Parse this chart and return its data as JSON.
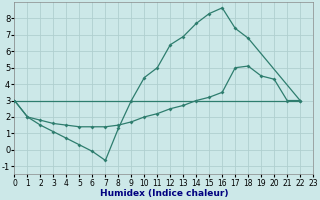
{
  "xlabel": "Humidex (Indice chaleur)",
  "bg_color": "#cce8e8",
  "grid_color": "#b0cfcf",
  "line_color": "#2e7d6e",
  "xlim": [
    0,
    23
  ],
  "ylim": [
    -1.5,
    9.0
  ],
  "yticks": [
    -1,
    0,
    1,
    2,
    3,
    4,
    5,
    6,
    7,
    8
  ],
  "xticks": [
    0,
    1,
    2,
    3,
    4,
    5,
    6,
    7,
    8,
    9,
    10,
    11,
    12,
    13,
    14,
    15,
    16,
    17,
    18,
    19,
    20,
    21,
    22,
    23
  ],
  "line1_x": [
    0,
    1,
    2,
    3,
    4,
    5,
    6,
    7,
    8,
    9,
    10,
    11,
    12,
    13,
    14,
    15,
    16,
    17,
    18,
    22
  ],
  "line1_y": [
    3.0,
    2.0,
    1.5,
    1.1,
    0.7,
    0.3,
    -0.1,
    -0.65,
    1.3,
    3.0,
    4.4,
    5.0,
    6.4,
    6.9,
    7.7,
    8.3,
    8.65,
    7.4,
    6.8,
    3.0
  ],
  "line2_x": [
    0,
    22
  ],
  "line2_y": [
    3.0,
    3.0
  ],
  "line3_x": [
    0,
    1,
    2,
    3,
    4,
    5,
    6,
    7,
    8,
    9,
    10,
    11,
    12,
    13,
    14,
    15,
    16,
    17,
    18,
    19,
    20,
    21,
    22
  ],
  "line3_y": [
    3.0,
    2.0,
    1.8,
    1.6,
    1.5,
    1.4,
    1.4,
    1.4,
    1.5,
    1.7,
    2.0,
    2.2,
    2.5,
    2.7,
    3.0,
    3.2,
    3.5,
    5.0,
    5.1,
    4.5,
    4.3,
    3.0,
    3.0
  ],
  "xlabel_color": "#000080",
  "xlabel_fontsize": 6.5,
  "tick_fontsize_x": 5.5,
  "tick_fontsize_y": 6.0
}
